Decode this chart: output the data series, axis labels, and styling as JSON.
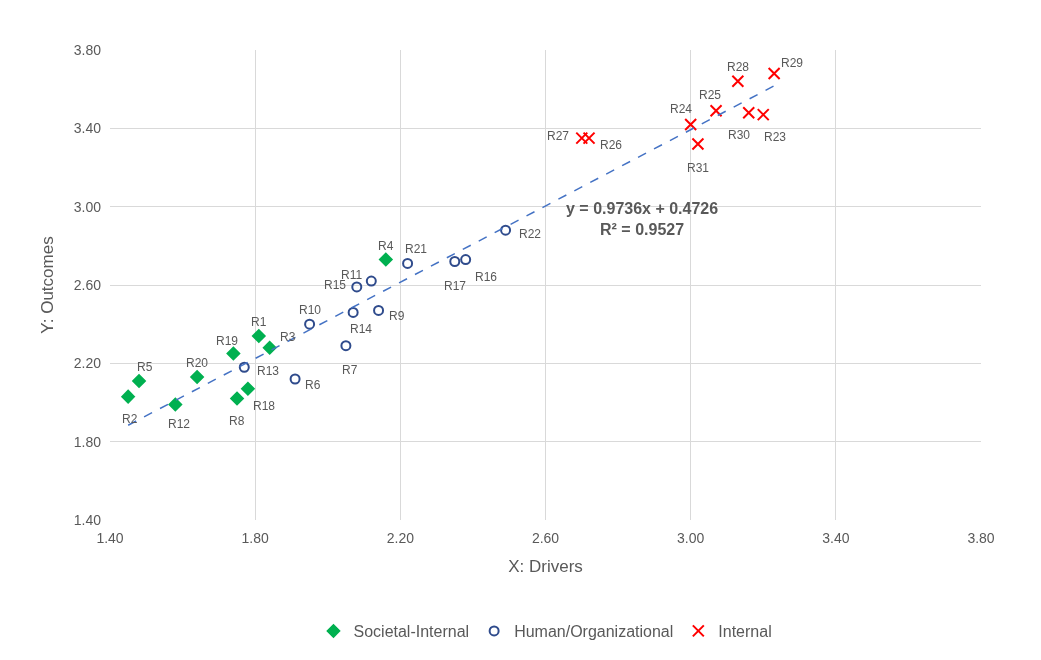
{
  "chart_data": {
    "type": "scatter",
    "xlabel": "X: Drivers",
    "ylabel": "Y: Outcomes",
    "xlim": [
      1.4,
      3.8
    ],
    "xticks": [
      {
        "value": 1.4,
        "label": "1.40"
      },
      {
        "value": 1.8,
        "label": "1.80"
      },
      {
        "value": 2.2,
        "label": "2.20"
      },
      {
        "value": 2.6,
        "label": "2.60"
      },
      {
        "value": 3.0,
        "label": "3.00"
      },
      {
        "value": 3.4,
        "label": "3.40"
      },
      {
        "value": 3.8,
        "label": "3.80"
      }
    ],
    "ylim": [
      1.4,
      3.8
    ],
    "yticks": [
      {
        "value": 1.4,
        "label": "1.40"
      },
      {
        "value": 1.8,
        "label": "1.80"
      },
      {
        "value": 2.2,
        "label": "2.20"
      },
      {
        "value": 2.6,
        "label": "2.60"
      },
      {
        "value": 3.0,
        "label": "3.00"
      },
      {
        "value": 3.4,
        "label": "3.40"
      },
      {
        "value": 3.8,
        "label": "3.80"
      }
    ],
    "grid": true,
    "legend": "bottom",
    "series": [
      {
        "name": "Societal-Internal",
        "color": "#00b050",
        "marker": "diamond",
        "x": [
          1.81,
          1.45,
          1.84,
          2.16,
          1.48,
          1.75,
          1.78,
          1.74,
          1.64,
          1.58
        ],
        "values": [
          2.34,
          2.03,
          2.28,
          2.73,
          2.11,
          2.02,
          2.07,
          2.25,
          2.13,
          1.99
        ]
      },
      {
        "name": "Human/Organizational",
        "color": "#2f4b8c",
        "marker": "circle-open",
        "x": [
          1.77,
          1.91,
          1.95,
          2.07,
          2.05,
          2.14,
          2.08,
          2.12,
          2.22,
          2.35,
          2.38,
          2.49
        ],
        "values": [
          2.18,
          2.12,
          2.4,
          2.46,
          2.29,
          2.47,
          2.59,
          2.62,
          2.71,
          2.72,
          2.73,
          2.88
        ]
      },
      {
        "name": "Internal",
        "color": "#ff0000",
        "marker": "x",
        "x": [
          2.7,
          2.72,
          3.0,
          3.02,
          3.07,
          3.13,
          3.23,
          3.16,
          3.2
        ],
        "values": [
          3.35,
          3.35,
          3.42,
          3.32,
          3.49,
          3.64,
          3.68,
          3.48,
          3.47
        ]
      },
      {
        "type": "line",
        "color": "#4472c4",
        "line_style": "dashed",
        "marker": "none",
        "x": [
          1.45,
          3.23
        ],
        "values": [
          1.884,
          3.617
        ]
      }
    ],
    "annotations": [
      {
        "text": "R1",
        "x": 1.81,
        "y": 2.34
      },
      {
        "text": "R2",
        "x": 1.45,
        "y": 2.03
      },
      {
        "text": "R3",
        "x": 1.84,
        "y": 2.28
      },
      {
        "text": "R4",
        "x": 2.16,
        "y": 2.73
      },
      {
        "text": "R5",
        "x": 1.48,
        "y": 2.11
      },
      {
        "text": "R6",
        "x": 1.91,
        "y": 2.12
      },
      {
        "text": "R7",
        "x": 2.05,
        "y": 2.29
      },
      {
        "text": "R8",
        "x": 1.75,
        "y": 2.02
      },
      {
        "text": "R9",
        "x": 2.14,
        "y": 2.47
      },
      {
        "text": "R10",
        "x": 1.95,
        "y": 2.4
      },
      {
        "text": "R11",
        "x": 2.12,
        "y": 2.62
      },
      {
        "text": "R12",
        "x": 1.58,
        "y": 1.99
      },
      {
        "text": "R13",
        "x": 1.77,
        "y": 2.18
      },
      {
        "text": "R14",
        "x": 2.07,
        "y": 2.46
      },
      {
        "text": "R15",
        "x": 2.08,
        "y": 2.59
      },
      {
        "text": "R16",
        "x": 2.38,
        "y": 2.73
      },
      {
        "text": "R17",
        "x": 2.35,
        "y": 2.72
      },
      {
        "text": "R18",
        "x": 1.78,
        "y": 2.07
      },
      {
        "text": "R19",
        "x": 1.74,
        "y": 2.25
      },
      {
        "text": "R20",
        "x": 1.64,
        "y": 2.13
      },
      {
        "text": "R21",
        "x": 2.22,
        "y": 2.71
      },
      {
        "text": "R22",
        "x": 2.49,
        "y": 2.88
      },
      {
        "text": "R23",
        "x": 3.2,
        "y": 3.47
      },
      {
        "text": "R24",
        "x": 3.0,
        "y": 3.42
      },
      {
        "text": "R25",
        "x": 3.07,
        "y": 3.49
      },
      {
        "text": "R26",
        "x": 2.72,
        "y": 3.35
      },
      {
        "text": "R27",
        "x": 2.7,
        "y": 3.35
      },
      {
        "text": "R28",
        "x": 3.13,
        "y": 3.64
      },
      {
        "text": "R29",
        "x": 3.23,
        "y": 3.68
      },
      {
        "text": "R30",
        "x": 3.16,
        "y": 3.48
      },
      {
        "text": "R31",
        "x": 3.02,
        "y": 3.32
      },
      "y = 0.9736x + 0.4726\nR² = 0.9527"
    ]
  }
}
